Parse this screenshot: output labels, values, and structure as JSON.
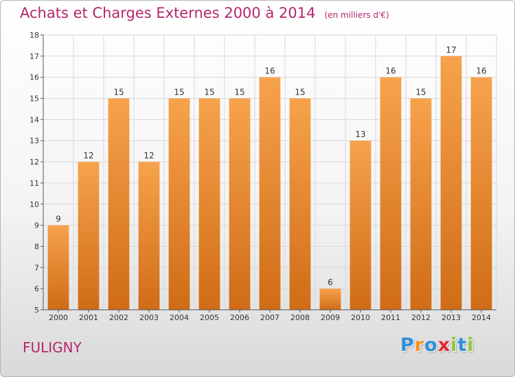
{
  "title": "Achats et Charges Externes 2000 à 2014",
  "unit": "(en milliers d'€)",
  "commune": "FULIGNY",
  "logo": {
    "letters": [
      "P",
      "r",
      "o",
      "x",
      "i",
      "t",
      "i"
    ],
    "colors": [
      "#2f8fd8",
      "#f7941d",
      "#2f8fd8",
      "#e2272b",
      "#8dc63f",
      "#2f8fd8",
      "#8dc63f"
    ]
  },
  "colors": {
    "title": "#b5266b",
    "bar_top": "#f7a24c",
    "bar_bottom": "#d06c16",
    "axis": "#555555",
    "grid": "#d8d8d8"
  },
  "chart_data": {
    "type": "bar",
    "categories": [
      "2000",
      "2001",
      "2002",
      "2003",
      "2004",
      "2005",
      "2006",
      "2007",
      "2008",
      "2009",
      "2010",
      "2011",
      "2012",
      "2013",
      "2014"
    ],
    "values": [
      9,
      12,
      15,
      12,
      15,
      15,
      15,
      16,
      15,
      6,
      13,
      16,
      15,
      17,
      16
    ],
    "ylim": [
      5,
      18
    ],
    "yticks": [
      5,
      6,
      7,
      8,
      9,
      10,
      11,
      12,
      13,
      14,
      15,
      16,
      17,
      18
    ],
    "grid": true
  }
}
